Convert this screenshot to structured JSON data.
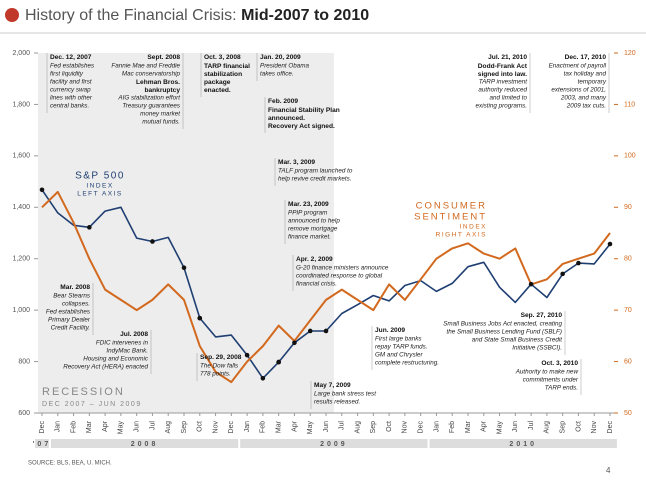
{
  "chart_data": {
    "type": "line",
    "title": "History of the Financial Crisis: ",
    "title_bold": "Mid-2007 to 2010",
    "categories": [
      "Dec",
      "Jan",
      "Feb",
      "Mar",
      "Apr",
      "May",
      "Jun",
      "Jul",
      "Aug",
      "Sep",
      "Oct",
      "Nov",
      "Dec",
      "Jan",
      "Feb",
      "Mar",
      "Apr",
      "May",
      "Jun",
      "Jul",
      "Aug",
      "Sep",
      "Oct",
      "Nov",
      "Dec",
      "Jan",
      "Feb",
      "Mar",
      "Apr",
      "May",
      "Jun",
      "Jul",
      "Aug",
      "Sep",
      "Oct",
      "Nov",
      "Dec"
    ],
    "year_labels": [
      "'07",
      "2008",
      "2009",
      "2010"
    ],
    "series": [
      {
        "name": "S&P 500",
        "label_lines": [
          "INDEX",
          "LEFT AXIS"
        ],
        "color": "#1f3f73",
        "values": [
          1468,
          1378,
          1330,
          1322,
          1385,
          1400,
          1280,
          1267,
          1283,
          1165,
          969,
          896,
          903,
          825,
          735,
          798,
          873,
          919,
          919,
          987,
          1021,
          1057,
          1036,
          1096,
          1115,
          1073,
          1104,
          1169,
          1186,
          1089,
          1030,
          1101,
          1049,
          1141,
          1183,
          1180,
          1257
        ]
      },
      {
        "name": "CONSUMER",
        "name_2": "SENTIMENT",
        "label_lines": [
          "INDEX",
          "RIGHT AXIS"
        ],
        "color": "#d2691e",
        "axis": "y2",
        "values": [
          90,
          93,
          87,
          80,
          74,
          72,
          70,
          72,
          75,
          72,
          63,
          58,
          56,
          60,
          63,
          67,
          64,
          68,
          72,
          74,
          72,
          70,
          75,
          72,
          76,
          80,
          82,
          83,
          81,
          80,
          82,
          75,
          76,
          79,
          80,
          81,
          85
        ]
      }
    ],
    "ylim": [
      600,
      2000
    ],
    "yticks": [
      600,
      800,
      {
        "value": 1000,
        "label": "1,000"
      },
      {
        "value": 1200,
        "label": "1,200"
      },
      {
        "value": 1400,
        "label": "1,400"
      },
      {
        "value": 1600,
        "label": "1,600"
      },
      {
        "value": 1800,
        "label": "1,800"
      },
      {
        "value": 2000,
        "label": "2,000"
      }
    ],
    "y2lim": [
      50,
      120
    ],
    "y2ticks": [
      50,
      60,
      70,
      80,
      90,
      100,
      110,
      120
    ],
    "recession_title": "RECESSION",
    "recession_range": "DEC 2007 – JUN 2009",
    "annotations": [
      {
        "date": "Dec. 12, 2007",
        "body": [
          "Fed establishes",
          "first liquidity",
          "facility and first",
          "currency swap",
          "lines with other",
          "central banks."
        ]
      },
      {
        "date": "Sept. 2008",
        "body": [
          "Fannie Mae and Freddie",
          "Mac conservatorship",
          "Lehman Bros.",
          "bankruptcy",
          "AIG stabilization effort",
          "Treasury guarantees",
          "money market",
          "mutual funds."
        ]
      },
      {
        "date": "Oct. 3, 2008",
        "body": [
          "TARP financial",
          "stabilization",
          "package",
          "enacted."
        ]
      },
      {
        "date": "Jan. 20, 2009",
        "body": [
          "President Obama",
          "takes office."
        ]
      },
      {
        "date": "Feb. 2009",
        "body": [
          "Financial Stability Plan",
          "announced.",
          "Recovery Act signed."
        ]
      },
      {
        "date": "Mar. 3, 2009",
        "body": [
          "TALF program launched to",
          "help revive credit markets."
        ]
      },
      {
        "date": "Mar. 23, 2009",
        "body": [
          "PPIP program",
          "announced to help",
          "remove mortgage",
          "finance market."
        ]
      },
      {
        "date": "Apr. 2, 2009",
        "body": [
          "G-20 finance ministers announce",
          "coordinated response to global",
          "financial crisis."
        ]
      },
      {
        "date": "Mar. 2008",
        "body": [
          "Bear Stearns",
          "collapses.",
          "Fed establishes",
          "Primary Dealer",
          "Credit Facility."
        ]
      },
      {
        "date": "Jul. 2008",
        "body": [
          "FDIC intervenes in",
          "IndyMac Bank.",
          "Housing and Economic",
          "Recovery Act (HERA) enacted"
        ]
      },
      {
        "date": "Sep. 29, 2008",
        "body": [
          "The Dow falls",
          "778 points."
        ]
      },
      {
        "date": "May 7, 2009",
        "body": [
          "Large bank stress test",
          "results released."
        ]
      },
      {
        "date": "Jun. 2009",
        "body": [
          "First large banks",
          "repay TARP funds.",
          "GM and Chrysler",
          "complete restructuring."
        ]
      },
      {
        "date": "Jul. 21, 2010",
        "body": [
          "Dodd-Frank Act",
          "signed into law.",
          "TARP investment",
          "authority reduced",
          "and limited to",
          "existing programs."
        ]
      },
      {
        "date": "Dec. 17, 2010",
        "body": [
          "Enactment of payroll",
          "tax holiday and",
          "temporary",
          "extensions of 2001,",
          "2003, and many",
          "2009 tax cuts."
        ]
      },
      {
        "date": "Sep. 27, 2010",
        "body": [
          "Small Business Jobs Act enacted, creating",
          "the Small Business Lending Fund (SBLF)",
          "and State Small Business Credit",
          "Initiative (SSBCI)."
        ]
      },
      {
        "date": "Oct. 3, 2010",
        "body": [
          "Authority to make new",
          "commitments under",
          "TARP ends."
        ]
      }
    ],
    "source": "SOURCE: BLS, BEA, U. MICH.",
    "page_number": "4"
  }
}
